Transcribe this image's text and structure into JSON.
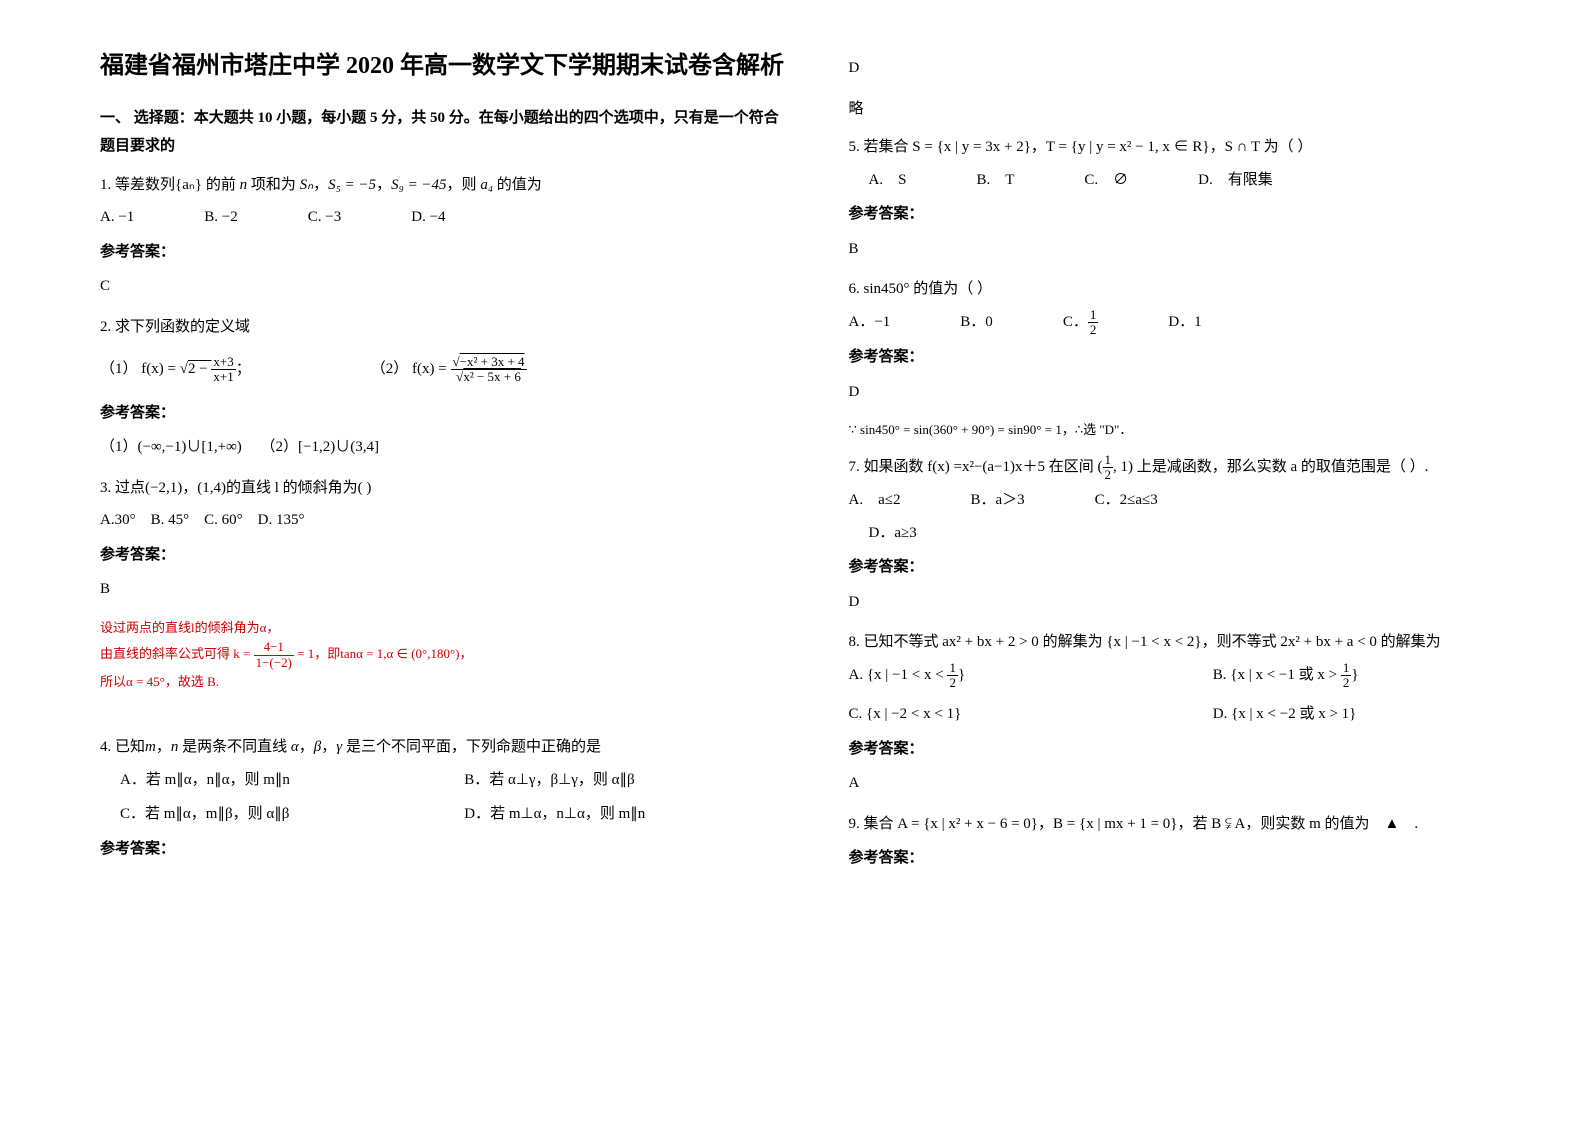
{
  "title": "福建省福州市塔庄中学 2020 年高一数学文下学期期末试卷含解析",
  "section1": "一、 选择题：本大题共 10 小题，每小题 5 分，共 50 分。在每小题给出的四个选项中，只有是一个符合题目要求的",
  "q1": {
    "stem_a": "1. 等差数列",
    "stem_b": " 的前 ",
    "stem_c": " 项和为 ",
    "stem_d": "，",
    "stem_e": "，",
    "stem_f": "，则 ",
    "stem_g": " 的值为",
    "an": "{aₙ}",
    "n": "n",
    "Sn": "Sₙ",
    "S5": "S₅ = −5",
    "S9": "S₉ = −45",
    "a4": "a₄",
    "optA": "A. −1",
    "optB": "B. −2",
    "optC": "C. −3",
    "optD": "D. −4",
    "ansLabel": "参考答案：",
    "ans": "C"
  },
  "q2": {
    "stem": "2. 求下列函数的定义域",
    "p1_label": "（1）",
    "p1_fx": "f(x) =",
    "p1_num": "x+3",
    "p1_den": "x+1",
    "p1_outer": "2 −",
    "p1_semi": "；",
    "p2_label": "（2）",
    "p2_fx": "f(x) =",
    "p2_num": "−x² + 3x + 4",
    "p2_den": "x² − 5x + 6",
    "ansLabel": "参考答案：",
    "ans1_label": "（1）",
    "ans1": "(−∞,−1)∪[1,+∞)",
    "ans2_label": "（2）",
    "ans2": "[−1,2)∪(3,4]"
  },
  "q3": {
    "stem": "3. 过点(−2,1)，(1,4)的直线 l 的倾斜角为(        )",
    "optA": "A.30°",
    "optB": "B. 45°",
    "optC": "C. 60°",
    "optD": "D. 135°",
    "ansLabel": "参考答案：",
    "ans": "B",
    "exp1": "设过两点的直线l的倾斜角为α，",
    "exp2a": "由直线的斜率公式可得 k = ",
    "exp2_num": "4−1",
    "exp2_den": "1−(−2)",
    "exp2_eq": " = 1，即tanα = 1,α ∈ (0°,180°)，",
    "exp3": "所以α = 45°，故选 B."
  },
  "q4": {
    "stem_a": "4. 已知",
    "stem_b": "，",
    "stem_c": " 是两条不同直线 ",
    "stem_d": "，",
    "stem_e": "，",
    "stem_f": " 是三个不同平面，下列命题中正确的是",
    "m": "m",
    "n": "n",
    "alpha": "α",
    "beta": "β",
    "gamma": "γ",
    "optA": "A．若 m∥α，n∥α，则 m∥n",
    "optB": "B．若 α⊥γ，β⊥γ，则 α∥β",
    "optC": "C．若 m∥α，m∥β，则 α∥β",
    "optD": "D．若 m⊥α，n⊥α，则 m∥n",
    "ansLabel": "参考答案："
  },
  "q4ans": "D",
  "q4exp": "略",
  "q5": {
    "stem_a": "5. 若集合 ",
    "S": "S = {x | y = 3x + 2}",
    "comma1": "，T = ",
    "T": "{y | y = x² − 1, x ∈ R}",
    "comma2": "，S ∩ T 为（          ）",
    "optA": "A.　S",
    "optB": "B.　T",
    "optC": "C.　∅",
    "optD": "D.　有限集",
    "ansLabel": "参考答案：",
    "ans": "B"
  },
  "q6": {
    "stem": "6. sin450° 的值为（        ）",
    "optA": "A．−1",
    "optB": "B．0",
    "optC_pre": "C．",
    "optC_num": "1",
    "optC_den": "2",
    "optD": "D．1",
    "ansLabel": "参考答案：",
    "ans": "D",
    "exp": "∵ sin450° = sin(360° + 90°) = sin90° = 1，∴选 \"D\"．"
  },
  "q7": {
    "stem_a": "7. 如果函数 f(x) =x²−(a−1)x＋5 在区间 ",
    "int_l": "(",
    "int_num": "1",
    "int_den": "2",
    "int_r": ", 1)",
    "stem_b": " 上是减函数，那么实数 a 的取值范围是（          ）.",
    "optA": "A.　a≤2",
    "optB": "B．a＞3",
    "optC": "C．2≤a≤3",
    "optD": "D．a≥3",
    "ansLabel": "参考答案：",
    "ans": "D"
  },
  "q8": {
    "stem_a": "8. 已知不等式 ",
    "ineq1": "ax² + bx + 2 > 0",
    "stem_b": " 的解集为 ",
    "set1": "{x | −1 < x < 2}",
    "stem_c": "，则不等式 ",
    "ineq2": "2x² + bx + a < 0",
    "stem_d": " 的解集为",
    "optA_pre": "A. ",
    "optA": "{x | −1 < x < ",
    "optA_num": "1",
    "optA_den": "2",
    "optA_close": "}",
    "optB_pre": "B. ",
    "optB": "{x | x < −1 或 x > ",
    "optB_num": "1",
    "optB_den": "2",
    "optB_close": "}",
    "optC_pre": "C. ",
    "optC": "{x | −2 < x < 1}",
    "optD_pre": "D. ",
    "optD": "{x | x < −2 或 x > 1}",
    "ansLabel": "参考答案：",
    "ans": "A"
  },
  "q9": {
    "stem_a": "9. 集合 ",
    "A": "A = {x | x² + x − 6 = 0}",
    "comma": "，",
    "B": "B = {x | mx + 1 = 0}",
    "stem_b": "，若 B ⫋ A，则实数 m 的值为　▲　.",
    "ansLabel": "参考答案："
  }
}
